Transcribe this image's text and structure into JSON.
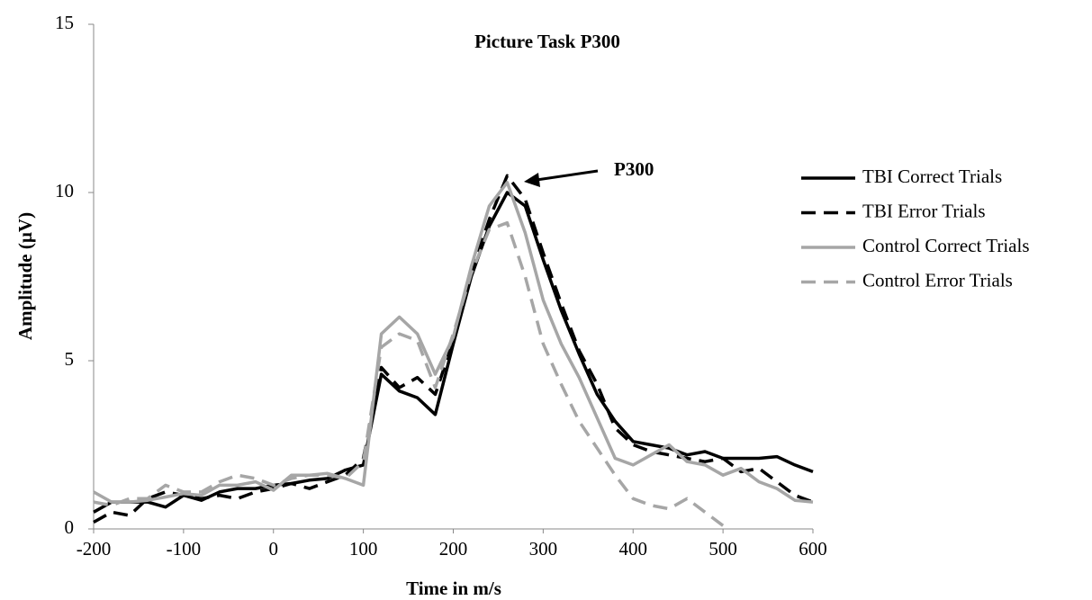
{
  "chart_data": {
    "type": "line",
    "title": "Picture Task P300",
    "xlabel": "Time in m/s",
    "ylabel": "Amplitude (µV)",
    "annotation": "P300",
    "x": [
      -200,
      -180,
      -160,
      -140,
      -120,
      -100,
      -80,
      -60,
      -40,
      -20,
      0,
      20,
      40,
      60,
      80,
      100,
      120,
      140,
      160,
      180,
      200,
      220,
      240,
      260,
      280,
      300,
      320,
      340,
      360,
      380,
      400,
      420,
      440,
      460,
      480,
      500,
      520,
      540,
      560,
      580,
      600
    ],
    "series": [
      {
        "name": "TBI Correct Trials",
        "color": "#000000",
        "dash": false,
        "values": [
          0.5,
          0.8,
          0.8,
          0.8,
          0.65,
          1.0,
          0.85,
          1.1,
          1.2,
          1.2,
          1.3,
          1.35,
          1.45,
          1.5,
          1.75,
          1.9,
          4.6,
          4.1,
          3.9,
          3.4,
          5.5,
          7.5,
          9.0,
          10.0,
          9.6,
          8.0,
          6.5,
          5.2,
          4.0,
          3.2,
          2.6,
          2.5,
          2.4,
          2.2,
          2.3,
          2.1,
          2.1,
          2.1,
          2.15,
          1.9,
          1.7
        ]
      },
      {
        "name": "TBI Error Trials",
        "color": "#000000",
        "dash": true,
        "values": [
          0.2,
          0.5,
          0.4,
          0.9,
          1.1,
          1.0,
          0.9,
          1.0,
          0.9,
          1.1,
          1.2,
          1.35,
          1.2,
          1.4,
          1.6,
          2.1,
          4.8,
          4.2,
          4.5,
          4.0,
          5.6,
          7.6,
          9.2,
          10.5,
          9.8,
          8.2,
          6.7,
          5.3,
          4.3,
          3.0,
          2.5,
          2.3,
          2.2,
          2.1,
          2.0,
          2.1,
          1.7,
          1.8,
          1.4,
          1.0,
          0.8
        ]
      },
      {
        "name": "Control Correct Trials",
        "color": "#a6a6a6",
        "dash": false,
        "values": [
          1.1,
          0.8,
          0.8,
          0.85,
          0.95,
          1.05,
          1.0,
          1.3,
          1.3,
          1.4,
          1.15,
          1.6,
          1.6,
          1.65,
          1.5,
          1.3,
          5.8,
          6.3,
          5.8,
          4.6,
          5.7,
          7.8,
          9.6,
          10.3,
          8.8,
          6.8,
          5.5,
          4.5,
          3.3,
          2.1,
          1.9,
          2.2,
          2.5,
          2.0,
          1.9,
          1.6,
          1.8,
          1.4,
          1.2,
          0.85,
          0.8
        ]
      },
      {
        "name": "Control Error Trials",
        "color": "#a6a6a6",
        "dash": true,
        "values": [
          0.8,
          0.7,
          0.9,
          0.9,
          1.3,
          1.1,
          1.1,
          1.4,
          1.6,
          1.5,
          1.3,
          1.5,
          1.6,
          1.6,
          1.5,
          2.0,
          5.4,
          5.8,
          5.6,
          4.2,
          5.8,
          7.6,
          8.9,
          9.1,
          7.5,
          5.5,
          4.3,
          3.2,
          2.4,
          1.6,
          0.9,
          0.7,
          0.6,
          0.9,
          0.5,
          0.1,
          null,
          null,
          null,
          null,
          null
        ]
      }
    ],
    "xlim": [
      -200,
      600
    ],
    "xticks": [
      -200,
      -100,
      0,
      100,
      200,
      300,
      400,
      500,
      600
    ],
    "ylim": [
      0,
      15
    ],
    "yticks": [
      0,
      5,
      10,
      15
    ],
    "grid": false,
    "legend": "right"
  }
}
